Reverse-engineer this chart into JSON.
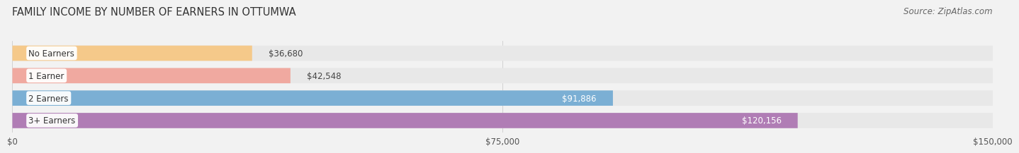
{
  "title": "FAMILY INCOME BY NUMBER OF EARNERS IN OTTUMWA",
  "source": "Source: ZipAtlas.com",
  "categories": [
    "No Earners",
    "1 Earner",
    "2 Earners",
    "3+ Earners"
  ],
  "values": [
    36680,
    42548,
    91886,
    120156
  ],
  "bar_colors": [
    "#f5c98a",
    "#f0a9a0",
    "#7bafd4",
    "#b07db5"
  ],
  "label_colors": [
    "#555555",
    "#555555",
    "#ffffff",
    "#ffffff"
  ],
  "xlim": [
    0,
    150000
  ],
  "xticks": [
    0,
    75000,
    150000
  ],
  "xtick_labels": [
    "$0",
    "$75,000",
    "$150,000"
  ],
  "bg_color": "#f2f2f2",
  "bar_bg_color": "#e8e8e8",
  "title_fontsize": 10.5,
  "source_fontsize": 8.5,
  "label_fontsize": 8.5,
  "tick_fontsize": 8.5,
  "value_threshold": 0.4
}
